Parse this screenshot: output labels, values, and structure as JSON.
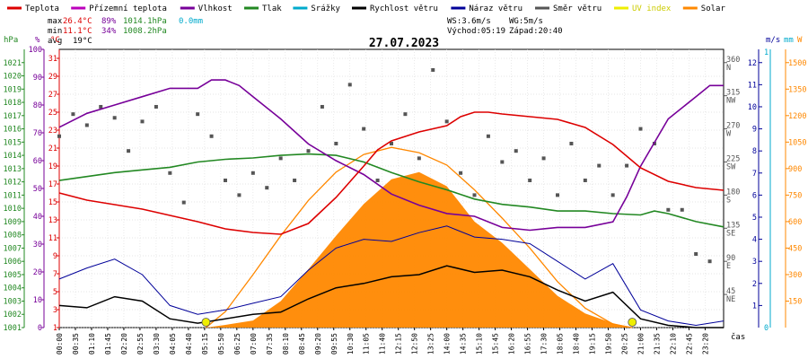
{
  "chart_data": {
    "type": "line",
    "title": "27.07.2023",
    "legend": [
      {
        "label": "Teplota",
        "color": "#dd0000"
      },
      {
        "label": "Přízemní teplota",
        "color": "#bb00bb"
      },
      {
        "label": "Vlhkost",
        "color": "#770099"
      },
      {
        "label": "Tlak",
        "color": "#228822"
      },
      {
        "label": "Srážky",
        "color": "#00aacc"
      },
      {
        "label": "Rychlost větru",
        "color": "#000000"
      },
      {
        "label": "Náraz větru",
        "color": "#000099"
      },
      {
        "label": "Směr větru",
        "color": "#555555"
      },
      {
        "label": "UV index",
        "color": "#eeee00"
      },
      {
        "label": "Solar",
        "color": "#ff8800"
      }
    ],
    "stats": {
      "max_label": "max",
      "min_label": "min",
      "avg_label": "avg",
      "max_temp": "26.4°C",
      "max_hum": "89%",
      "max_press": "1014.1hPa",
      "max_rain": "0.0mm",
      "min_temp": "11.1°C",
      "min_hum": "34%",
      "min_press": "1008.2hPa",
      "avg_temp": "19°C"
    },
    "wind_info": {
      "ws": "WS:3.6m/s",
      "wg": "WG:5m/s",
      "sunrise": "Východ:05:19",
      "sunset": "Západ:20:40"
    },
    "axis_units": {
      "press": "hPa",
      "hum": "%",
      "temp": "°C",
      "wind": "m/s",
      "rain": "mm",
      "solar": "W",
      "time": "čas"
    },
    "x_ticks": [
      "00:00",
      "00:35",
      "01:10",
      "01:45",
      "02:20",
      "02:55",
      "03:30",
      "04:05",
      "04:40",
      "05:15",
      "05:50",
      "06:25",
      "07:00",
      "07:35",
      "08:10",
      "08:45",
      "09:20",
      "09:55",
      "10:30",
      "11:05",
      "11:40",
      "12:15",
      "12:50",
      "13:25",
      "14:00",
      "14:35",
      "15:10",
      "15:45",
      "16:20",
      "16:55",
      "17:30",
      "18:05",
      "18:40",
      "19:15",
      "19:50",
      "20:25",
      "21:00",
      "21:35",
      "22:10",
      "22:45",
      "23:20"
    ],
    "press_ticks": [
      "1001",
      "1002",
      "1003",
      "1004",
      "1005",
      "1006",
      "1007",
      "1008",
      "1009",
      "1010",
      "1011",
      "1012",
      "1013",
      "1014",
      "1015",
      "1016",
      "1017",
      "1018",
      "1019",
      "1020",
      "1021"
    ],
    "hum_ticks": [
      "0",
      "10",
      "20",
      "30",
      "40",
      "50",
      "60",
      "70",
      "80",
      "90",
      "100"
    ],
    "temp_ticks": [
      "1",
      "3",
      "5",
      "7",
      "9",
      "11",
      "13",
      "15",
      "17",
      "19",
      "21",
      "23",
      "25",
      "27",
      "29",
      "31"
    ],
    "dir_ticks": [
      {
        "deg": "360",
        "dir": "N"
      },
      {
        "deg": "315",
        "dir": "NW"
      },
      {
        "deg": "270",
        "dir": "W"
      },
      {
        "deg": "225",
        "dir": "SW"
      },
      {
        "deg": "180",
        "dir": "S"
      },
      {
        "deg": "135",
        "dir": "SE"
      },
      {
        "deg": "90",
        "dir": "E"
      },
      {
        "deg": "45",
        "dir": "NE"
      }
    ],
    "wind_ticks": [
      "1",
      "2",
      "3",
      "4",
      "5",
      "6",
      "7",
      "8",
      "9",
      "10",
      "11",
      "12"
    ],
    "rain_ticks": [
      "0",
      "1"
    ],
    "solar_ticks": [
      "150",
      "300",
      "450",
      "600",
      "750",
      "900",
      "1050",
      "1200",
      "1350",
      "1500"
    ],
    "series": {
      "temperature": [
        [
          0,
          16.0
        ],
        [
          1,
          15.2
        ],
        [
          2,
          14.7
        ],
        [
          3,
          14.2
        ],
        [
          4,
          13.5
        ],
        [
          5,
          12.8
        ],
        [
          6,
          12.0
        ],
        [
          7,
          11.6
        ],
        [
          8,
          11.4
        ],
        [
          9,
          12.6
        ],
        [
          10,
          15.5
        ],
        [
          11,
          19.0
        ],
        [
          11.5,
          20.8
        ],
        [
          12,
          21.8
        ],
        [
          13,
          22.8
        ],
        [
          14,
          23.5
        ],
        [
          14.5,
          24.5
        ],
        [
          15,
          25.0
        ],
        [
          15.5,
          25.0
        ],
        [
          16,
          24.8
        ],
        [
          17,
          24.5
        ],
        [
          18,
          24.2
        ],
        [
          19,
          23.3
        ],
        [
          20,
          21.4
        ],
        [
          21,
          18.8
        ],
        [
          22,
          17.3
        ],
        [
          23,
          16.6
        ],
        [
          24,
          16.3
        ]
      ],
      "humidity": [
        [
          0,
          72
        ],
        [
          1,
          77
        ],
        [
          2,
          80
        ],
        [
          3,
          83
        ],
        [
          4,
          86
        ],
        [
          5,
          86
        ],
        [
          5.5,
          89
        ],
        [
          6,
          89
        ],
        [
          6.5,
          87
        ],
        [
          7,
          83
        ],
        [
          8,
          75
        ],
        [
          9,
          66
        ],
        [
          10,
          60
        ],
        [
          11,
          55
        ],
        [
          12,
          48
        ],
        [
          13,
          44
        ],
        [
          14,
          41
        ],
        [
          15,
          40
        ],
        [
          16,
          36
        ],
        [
          17,
          35
        ],
        [
          18,
          36
        ],
        [
          19,
          36
        ],
        [
          20,
          38
        ],
        [
          20.5,
          47
        ],
        [
          21,
          58
        ],
        [
          22,
          75
        ],
        [
          23,
          83
        ],
        [
          23.5,
          87
        ],
        [
          24,
          87
        ]
      ],
      "pressure": [
        [
          0,
          1012.1
        ],
        [
          1,
          1012.4
        ],
        [
          2,
          1012.7
        ],
        [
          3,
          1012.9
        ],
        [
          4,
          1013.1
        ],
        [
          5,
          1013.5
        ],
        [
          6,
          1013.7
        ],
        [
          7,
          1013.8
        ],
        [
          8,
          1014.0
        ],
        [
          9,
          1014.1
        ],
        [
          10,
          1014.0
        ],
        [
          11,
          1013.5
        ],
        [
          12,
          1012.7
        ],
        [
          13,
          1012.0
        ],
        [
          14,
          1011.4
        ],
        [
          15,
          1010.7
        ],
        [
          16,
          1010.3
        ],
        [
          17,
          1010.1
        ],
        [
          18,
          1009.8
        ],
        [
          19,
          1009.8
        ],
        [
          20,
          1009.6
        ],
        [
          21,
          1009.5
        ],
        [
          21.5,
          1009.8
        ],
        [
          22,
          1009.6
        ],
        [
          23,
          1009.0
        ],
        [
          24,
          1008.6
        ]
      ],
      "wind_speed": [
        [
          0,
          1.0
        ],
        [
          1,
          0.9
        ],
        [
          2,
          1.4
        ],
        [
          3,
          1.2
        ],
        [
          4,
          0.4
        ],
        [
          5,
          0.2
        ],
        [
          6,
          0.4
        ],
        [
          7,
          0.6
        ],
        [
          8,
          0.7
        ],
        [
          9,
          1.3
        ],
        [
          10,
          1.8
        ],
        [
          11,
          2.0
        ],
        [
          12,
          2.3
        ],
        [
          13,
          2.4
        ],
        [
          14,
          2.8
        ],
        [
          15,
          2.5
        ],
        [
          16,
          2.6
        ],
        [
          17,
          2.3
        ],
        [
          18,
          1.7
        ],
        [
          19,
          1.2
        ],
        [
          20,
          1.6
        ],
        [
          21,
          0.4
        ],
        [
          22,
          0.1
        ],
        [
          23,
          0.0
        ],
        [
          24,
          0.0
        ]
      ],
      "wind_gust": [
        [
          0,
          2.2
        ],
        [
          1,
          2.7
        ],
        [
          2,
          3.1
        ],
        [
          3,
          2.4
        ],
        [
          4,
          1.0
        ],
        [
          5,
          0.6
        ],
        [
          6,
          0.8
        ],
        [
          7,
          1.1
        ],
        [
          8,
          1.4
        ],
        [
          9,
          2.6
        ],
        [
          10,
          3.6
        ],
        [
          11,
          4.0
        ],
        [
          12,
          3.9
        ],
        [
          13,
          4.3
        ],
        [
          14,
          4.6
        ],
        [
          15,
          4.1
        ],
        [
          16,
          4.0
        ],
        [
          17,
          3.8
        ],
        [
          18,
          3.0
        ],
        [
          19,
          2.2
        ],
        [
          20,
          2.9
        ],
        [
          21,
          0.8
        ],
        [
          22,
          0.3
        ],
        [
          23,
          0.1
        ],
        [
          24,
          0.3
        ]
      ],
      "wind_direction": [
        [
          0,
          260
        ],
        [
          0.5,
          290
        ],
        [
          1,
          275
        ],
        [
          1.5,
          300
        ],
        [
          2,
          285
        ],
        [
          2.5,
          240
        ],
        [
          3,
          280
        ],
        [
          3.5,
          300
        ],
        [
          4,
          210
        ],
        [
          4.5,
          170
        ],
        [
          5,
          290
        ],
        [
          5.5,
          260
        ],
        [
          6,
          200
        ],
        [
          6.5,
          180
        ],
        [
          7,
          210
        ],
        [
          7.5,
          190
        ],
        [
          8,
          230
        ],
        [
          8.5,
          200
        ],
        [
          9,
          240
        ],
        [
          9.5,
          300
        ],
        [
          10,
          250
        ],
        [
          10.5,
          330
        ],
        [
          11,
          270
        ],
        [
          11.5,
          200
        ],
        [
          12,
          250
        ],
        [
          12.5,
          290
        ],
        [
          13,
          230
        ],
        [
          13.5,
          350
        ],
        [
          14,
          280
        ],
        [
          14.5,
          210
        ],
        [
          15,
          180
        ],
        [
          15.5,
          260
        ],
        [
          16,
          225
        ],
        [
          16.5,
          240
        ],
        [
          17,
          200
        ],
        [
          17.5,
          230
        ],
        [
          18,
          180
        ],
        [
          18.5,
          250
        ],
        [
          19,
          200
        ],
        [
          19.5,
          220
        ],
        [
          20,
          180
        ],
        [
          20.5,
          220
        ],
        [
          21,
          270
        ],
        [
          21.5,
          250
        ],
        [
          22,
          160
        ],
        [
          22.5,
          160
        ],
        [
          23,
          100
        ],
        [
          23.5,
          90
        ]
      ],
      "solar": [
        [
          5.3,
          0
        ],
        [
          6,
          15
        ],
        [
          7,
          40
        ],
        [
          8,
          150
        ],
        [
          9,
          330
        ],
        [
          10,
          520
        ],
        [
          11,
          700
        ],
        [
          12,
          840
        ],
        [
          13,
          880
        ],
        [
          14,
          800
        ],
        [
          15,
          600
        ],
        [
          16,
          480
        ],
        [
          17,
          330
        ],
        [
          18,
          180
        ],
        [
          19,
          80
        ],
        [
          20,
          25
        ],
        [
          20.7,
          0
        ]
      ],
      "solar_theory": [
        [
          5.3,
          0
        ],
        [
          6,
          90
        ],
        [
          7,
          300
        ],
        [
          8,
          520
        ],
        [
          9,
          720
        ],
        [
          10,
          880
        ],
        [
          11,
          980
        ],
        [
          12,
          1020
        ],
        [
          13,
          990
        ],
        [
          14,
          920
        ],
        [
          15,
          780
        ],
        [
          16,
          620
        ],
        [
          17,
          450
        ],
        [
          18,
          260
        ],
        [
          19,
          110
        ],
        [
          20,
          20
        ],
        [
          20.7,
          0
        ]
      ],
      "uv_markers": [
        5.3,
        20.7
      ]
    },
    "ranges": {
      "hours": [
        0,
        24
      ],
      "temp": [
        1,
        32
      ],
      "humidity": [
        0,
        100
      ],
      "pressure": [
        1001,
        1022
      ],
      "wind": [
        0,
        12.6
      ],
      "direction": [
        0,
        378
      ],
      "solar": [
        0,
        1575
      ]
    }
  }
}
